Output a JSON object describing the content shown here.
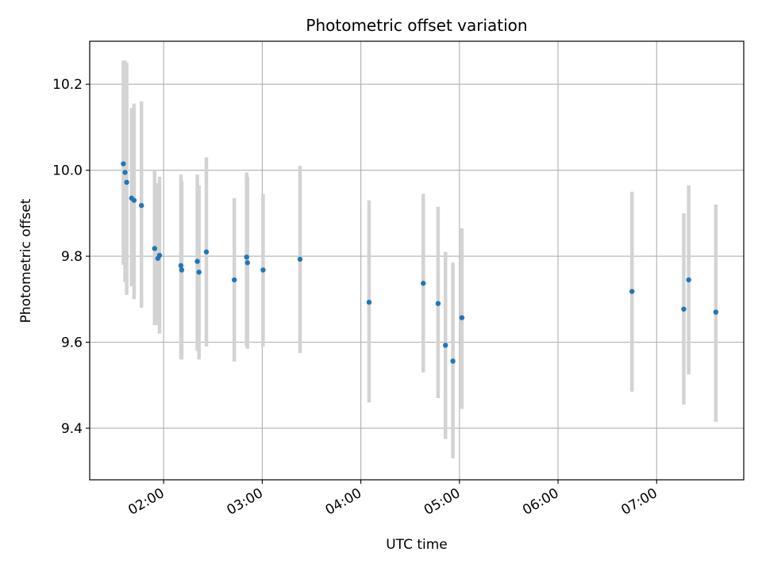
{
  "chart_data": {
    "type": "scatter",
    "title": "Photometric offset variation",
    "xlabel": "UTC time",
    "ylabel": "Photometric offset",
    "xlim": [
      "01:15",
      "07:53"
    ],
    "ylim": [
      9.28,
      10.3
    ],
    "x_ticks": [
      "02:00",
      "03:00",
      "04:00",
      "05:00",
      "06:00",
      "07:00"
    ],
    "y_ticks": [
      9.4,
      9.6,
      9.8,
      10.0,
      10.2
    ],
    "grid": true,
    "errorbar_color": "#d3d3d3",
    "marker_color": "#1f77b4",
    "points": [
      {
        "x": "01:35.5",
        "y": 10.015,
        "ylo": 9.78,
        "yhi": 10.255
      },
      {
        "x": "01:36.5",
        "y": 9.995,
        "ylo": 9.74,
        "yhi": 10.255
      },
      {
        "x": "01:37.5",
        "y": 9.972,
        "ylo": 9.71,
        "yhi": 10.25
      },
      {
        "x": "01:40.5",
        "y": 9.935,
        "ylo": 9.73,
        "yhi": 10.145
      },
      {
        "x": "01:42.0",
        "y": 9.93,
        "ylo": 9.7,
        "yhi": 10.155
      },
      {
        "x": "01:46.5",
        "y": 9.918,
        "ylo": 9.68,
        "yhi": 10.16
      },
      {
        "x": "01:54.5",
        "y": 9.818,
        "ylo": 9.64,
        "yhi": 10.0
      },
      {
        "x": "01:56.5",
        "y": 9.795,
        "ylo": 9.64,
        "yhi": 9.97
      },
      {
        "x": "01:57.5",
        "y": 9.802,
        "ylo": 9.62,
        "yhi": 9.985
      },
      {
        "x": "02:10.5",
        "y": 9.778,
        "ylo": 9.56,
        "yhi": 9.99
      },
      {
        "x": "02:11.0",
        "y": 9.768,
        "ylo": 9.56,
        "yhi": 9.975
      },
      {
        "x": "02:20.5",
        "y": 9.788,
        "ylo": 9.58,
        "yhi": 9.99
      },
      {
        "x": "02:21.5",
        "y": 9.763,
        "ylo": 9.56,
        "yhi": 9.965
      },
      {
        "x": "02:26.0",
        "y": 9.81,
        "ylo": 9.59,
        "yhi": 10.03
      },
      {
        "x": "02:43.0",
        "y": 9.745,
        "ylo": 9.555,
        "yhi": 9.935
      },
      {
        "x": "02:50.5",
        "y": 9.798,
        "ylo": 9.59,
        "yhi": 9.995
      },
      {
        "x": "02:51.0",
        "y": 9.785,
        "ylo": 9.585,
        "yhi": 9.985
      },
      {
        "x": "03:00.5",
        "y": 9.768,
        "ylo": 9.59,
        "yhi": 9.945
      },
      {
        "x": "03:23.0",
        "y": 9.793,
        "ylo": 9.575,
        "yhi": 10.01
      },
      {
        "x": "04:05.0",
        "y": 9.693,
        "ylo": 9.46,
        "yhi": 9.93
      },
      {
        "x": "04:38.0",
        "y": 9.737,
        "ylo": 9.53,
        "yhi": 9.945
      },
      {
        "x": "04:47.0",
        "y": 9.69,
        "ylo": 9.47,
        "yhi": 9.915
      },
      {
        "x": "04:51.5",
        "y": 9.593,
        "ylo": 9.375,
        "yhi": 9.81
      },
      {
        "x": "04:56.0",
        "y": 9.556,
        "ylo": 9.33,
        "yhi": 9.785
      },
      {
        "x": "05:01.5",
        "y": 9.657,
        "ylo": 9.445,
        "yhi": 9.865
      },
      {
        "x": "06:45.0",
        "y": 9.718,
        "ylo": 9.485,
        "yhi": 9.95
      },
      {
        "x": "07:16.5",
        "y": 9.677,
        "ylo": 9.455,
        "yhi": 9.9
      },
      {
        "x": "07:19.5",
        "y": 9.745,
        "ylo": 9.525,
        "yhi": 9.965
      },
      {
        "x": "07:36.0",
        "y": 9.67,
        "ylo": 9.415,
        "yhi": 9.92
      }
    ]
  }
}
